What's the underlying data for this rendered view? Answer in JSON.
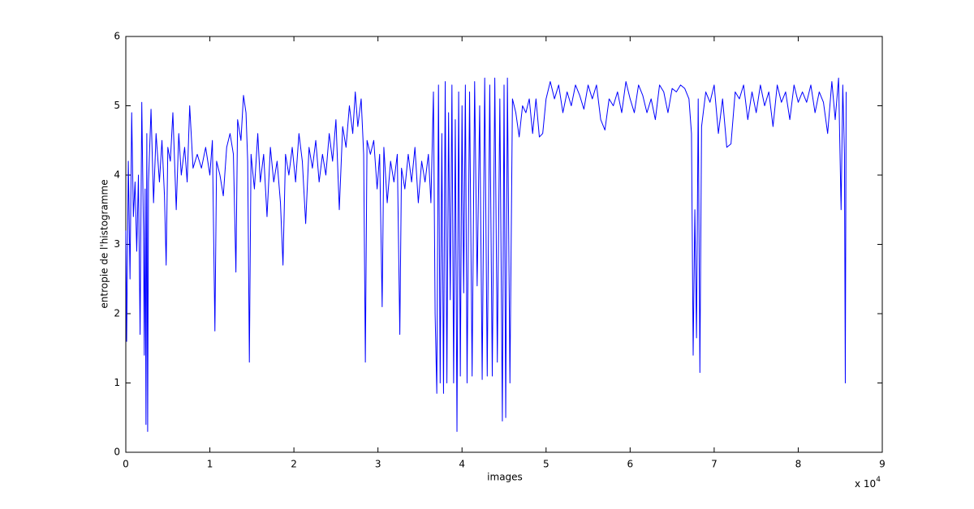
{
  "chart_data": {
    "type": "line",
    "xlabel": "images",
    "ylabel": "entropie de l'histogramme",
    "x_multiplier": {
      "base": "x 10",
      "exponent": "4"
    },
    "xlim": [
      0,
      9
    ],
    "ylim": [
      0,
      6
    ],
    "xticks": [
      0,
      1,
      2,
      3,
      4,
      5,
      6,
      7,
      8,
      9
    ],
    "yticks": [
      0,
      1,
      2,
      3,
      4,
      5,
      6
    ],
    "grid": false,
    "series": [
      {
        "color": "#0000ff",
        "x": [
          0,
          0.01,
          0.03,
          0.05,
          0.07,
          0.09,
          0.11,
          0.13,
          0.15,
          0.17,
          0.19,
          0.21,
          0.22,
          0.23,
          0.24,
          0.25,
          0.26,
          0.27,
          0.3,
          0.33,
          0.36,
          0.4,
          0.43,
          0.46,
          0.48,
          0.5,
          0.53,
          0.56,
          0.6,
          0.63,
          0.66,
          0.7,
          0.73,
          0.76,
          0.8,
          0.85,
          0.9,
          0.95,
          1.0,
          1.03,
          1.06,
          1.08,
          1.12,
          1.16,
          1.2,
          1.24,
          1.28,
          1.31,
          1.33,
          1.37,
          1.4,
          1.43,
          1.45,
          1.47,
          1.49,
          1.53,
          1.57,
          1.6,
          1.64,
          1.68,
          1.72,
          1.76,
          1.8,
          1.84,
          1.87,
          1.9,
          1.94,
          1.98,
          2.02,
          2.06,
          2.1,
          2.14,
          2.18,
          2.22,
          2.26,
          2.3,
          2.34,
          2.38,
          2.42,
          2.46,
          2.5,
          2.54,
          2.58,
          2.62,
          2.66,
          2.7,
          2.73,
          2.76,
          2.8,
          2.83,
          2.85,
          2.87,
          2.91,
          2.95,
          2.99,
          3.02,
          3.05,
          3.07,
          3.11,
          3.15,
          3.19,
          3.23,
          3.26,
          3.28,
          3.32,
          3.36,
          3.4,
          3.44,
          3.48,
          3.52,
          3.56,
          3.6,
          3.63,
          3.66,
          3.68,
          3.7,
          3.72,
          3.74,
          3.76,
          3.78,
          3.8,
          3.82,
          3.84,
          3.86,
          3.88,
          3.9,
          3.92,
          3.94,
          3.96,
          3.98,
          4.0,
          4.02,
          4.04,
          4.06,
          4.09,
          4.12,
          4.15,
          4.18,
          4.21,
          4.24,
          4.27,
          4.3,
          4.33,
          4.36,
          4.39,
          4.42,
          4.45,
          4.48,
          4.5,
          4.52,
          4.54,
          4.57,
          4.6,
          4.64,
          4.68,
          4.72,
          4.76,
          4.8,
          4.84,
          4.88,
          4.92,
          4.96,
          5.0,
          5.05,
          5.1,
          5.15,
          5.2,
          5.25,
          5.3,
          5.35,
          5.4,
          5.45,
          5.5,
          5.55,
          5.6,
          5.65,
          5.7,
          5.75,
          5.8,
          5.85,
          5.9,
          5.95,
          6.0,
          6.05,
          6.1,
          6.15,
          6.2,
          6.25,
          6.3,
          6.35,
          6.4,
          6.45,
          6.5,
          6.55,
          6.6,
          6.65,
          6.7,
          6.73,
          6.75,
          6.77,
          6.79,
          6.81,
          6.83,
          6.85,
          6.9,
          6.95,
          7.0,
          7.05,
          7.1,
          7.15,
          7.2,
          7.25,
          7.3,
          7.35,
          7.4,
          7.45,
          7.5,
          7.55,
          7.6,
          7.65,
          7.7,
          7.75,
          7.8,
          7.85,
          7.9,
          7.95,
          8.0,
          8.05,
          8.1,
          8.15,
          8.2,
          8.25,
          8.3,
          8.35,
          8.4,
          8.44,
          8.48,
          8.51,
          8.53,
          8.55,
          8.56,
          8.57
        ],
        "values": [
          3.2,
          1.6,
          4.2,
          2.5,
          4.9,
          3.4,
          3.9,
          2.9,
          4.0,
          1.7,
          5.05,
          3.2,
          1.4,
          3.8,
          0.4,
          4.6,
          0.3,
          3.9,
          4.95,
          3.6,
          4.6,
          3.9,
          4.5,
          3.7,
          2.7,
          4.4,
          4.2,
          4.9,
          3.5,
          4.6,
          4.0,
          4.4,
          3.9,
          5.0,
          4.1,
          4.3,
          4.1,
          4.4,
          4.0,
          4.5,
          1.75,
          4.2,
          4.0,
          3.7,
          4.4,
          4.6,
          4.3,
          2.6,
          4.8,
          4.5,
          5.15,
          4.9,
          4.2,
          1.3,
          4.3,
          3.8,
          4.6,
          3.9,
          4.3,
          3.4,
          4.4,
          3.9,
          4.2,
          3.6,
          2.7,
          4.3,
          4.0,
          4.4,
          3.9,
          4.6,
          4.2,
          3.3,
          4.4,
          4.1,
          4.5,
          3.9,
          4.3,
          4.0,
          4.6,
          4.2,
          4.8,
          3.5,
          4.7,
          4.4,
          5.0,
          4.6,
          5.2,
          4.7,
          5.1,
          4.3,
          1.3,
          4.5,
          4.3,
          4.5,
          3.8,
          4.3,
          2.1,
          4.4,
          3.6,
          4.2,
          3.9,
          4.3,
          1.7,
          4.1,
          3.8,
          4.3,
          3.9,
          4.4,
          3.6,
          4.2,
          3.9,
          4.3,
          3.6,
          5.2,
          2.0,
          0.85,
          5.3,
          1.0,
          4.6,
          0.85,
          5.35,
          1.0,
          4.9,
          2.2,
          5.3,
          1.0,
          4.8,
          0.3,
          5.2,
          1.1,
          5.0,
          2.3,
          5.3,
          1.0,
          5.2,
          1.1,
          5.35,
          2.4,
          5.0,
          1.05,
          5.4,
          1.1,
          5.3,
          1.1,
          5.4,
          1.3,
          5.1,
          0.45,
          5.3,
          0.5,
          5.4,
          1.0,
          5.1,
          4.9,
          4.55,
          5.0,
          4.9,
          5.1,
          4.6,
          5.1,
          4.55,
          4.6,
          5.1,
          5.35,
          5.1,
          5.3,
          4.9,
          5.2,
          5.0,
          5.3,
          5.15,
          4.95,
          5.3,
          5.1,
          5.3,
          4.8,
          4.65,
          5.1,
          5.0,
          5.2,
          4.9,
          5.35,
          5.1,
          4.9,
          5.3,
          5.15,
          4.9,
          5.1,
          4.8,
          5.3,
          5.2,
          4.9,
          5.25,
          5.2,
          5.3,
          5.25,
          5.1,
          4.6,
          1.4,
          3.5,
          1.65,
          5.1,
          1.15,
          4.7,
          5.2,
          5.05,
          5.3,
          4.6,
          5.1,
          4.4,
          4.45,
          5.2,
          5.1,
          5.3,
          4.8,
          5.2,
          4.9,
          5.3,
          5.0,
          5.2,
          4.7,
          5.3,
          5.05,
          5.2,
          4.8,
          5.3,
          5.05,
          5.2,
          5.05,
          5.3,
          4.9,
          5.2,
          5.05,
          4.6,
          5.35,
          4.8,
          5.4,
          3.5,
          5.3,
          4.3,
          1.0,
          5.2
        ]
      }
    ]
  }
}
